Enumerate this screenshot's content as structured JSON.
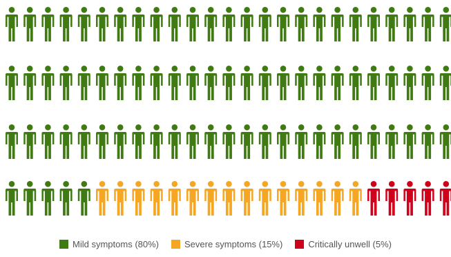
{
  "chart_data": {
    "type": "pictogram",
    "series": [
      {
        "name": "Mild symptoms (80%)",
        "value": 80,
        "color": "#3f7a12"
      },
      {
        "name": "Severe symptoms (15%)",
        "value": 15,
        "color": "#f5a623"
      },
      {
        "name": "Critically unwell (5%)",
        "value": 5,
        "color": "#d0021b"
      }
    ],
    "icon": "person-icon",
    "legend_position": "bottom-center"
  }
}
